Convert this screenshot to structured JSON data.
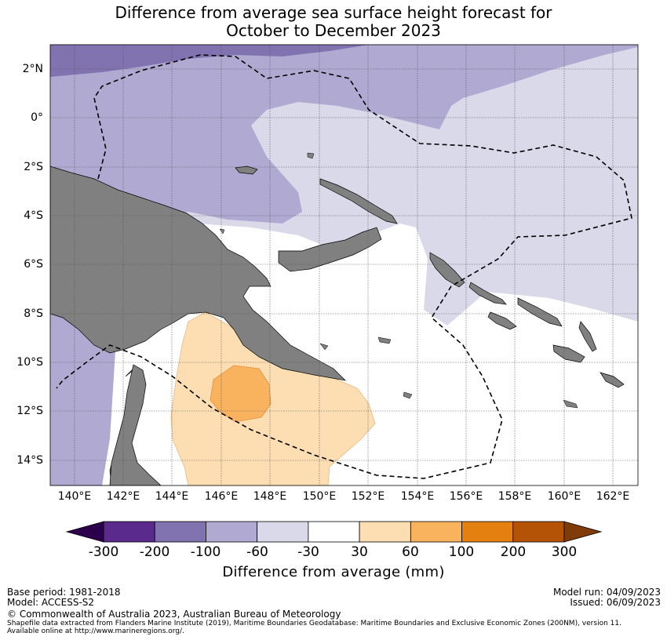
{
  "title": {
    "line1": "Difference from average sea surface height forecast for",
    "line2": "October to December 2023"
  },
  "map": {
    "lat_labels": [
      "2°N",
      "0°",
      "2°S",
      "4°S",
      "6°S",
      "8°S",
      "10°S",
      "12°S",
      "14°S"
    ],
    "lon_labels": [
      "140°E",
      "142°E",
      "144°E",
      "146°E",
      "148°E",
      "150°E",
      "152°E",
      "154°E",
      "156°E",
      "158°E",
      "160°E",
      "162°E"
    ],
    "region": "Papua New Guinea and surrounding waters",
    "boundary_style": "dashed EEZ line",
    "colors": {
      "land": "#808080",
      "ocean_neutral": "#ffffff",
      "n30_60": "#d9d9ea",
      "n60_100": "#b0aad2",
      "n100_200": "#8172b0",
      "p30_60": "#fddeb3",
      "p60_100": "#f9b35e"
    }
  },
  "colorbar": {
    "ticks": [
      "-300",
      "-200",
      "-100",
      "-60",
      "-30",
      "30",
      "60",
      "100",
      "200",
      "300"
    ],
    "colors": [
      "#5a2b8c",
      "#8172b0",
      "#b0aad2",
      "#d9d9ea",
      "#ffffff",
      "#fddeb3",
      "#f9b35e",
      "#e3800f",
      "#b45305"
    ],
    "low_extend_color": "#2d004b",
    "high_extend_color": "#7f3b08",
    "label": "Difference from average (mm)"
  },
  "footer": {
    "base_period": "Base period: 1981-2018",
    "model": "Model: ACCESS-S2",
    "model_run": "Model run: 04/09/2023",
    "issued": "Issued: 06/09/2023",
    "copyright": "© Commonwealth of Australia 2023, Australian Bureau of Meteorology",
    "shapefile_line1": "Shapefile data extracted from Flanders Marine Institute (2019), Maritime Boundaries Geodatabase: Maritime Boundaries and Exclusive Economic Zones (200NM), version 11.",
    "shapefile_line2": "Available online at http://www.marineregions.org/."
  }
}
